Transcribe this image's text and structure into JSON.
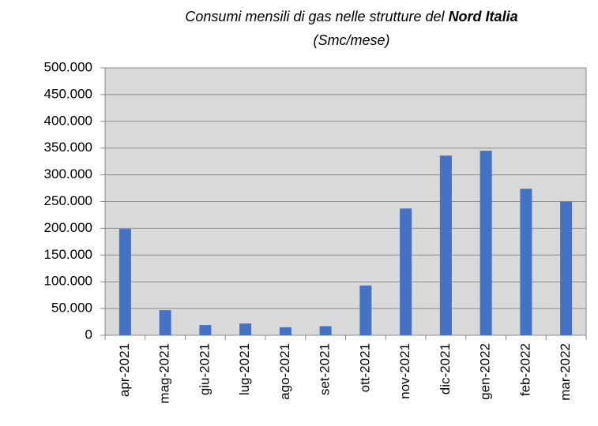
{
  "chart_data": {
    "type": "bar",
    "title": "Consumi mensili di gas nelle strutture del",
    "title_bold": "Nord Italia",
    "subtitle": "(Smc/mese)",
    "categories": [
      "apr-2021",
      "mag-2021",
      "giu-2021",
      "lug-2021",
      "ago-2021",
      "set-2021",
      "ott-2021",
      "nov-2021",
      "dic-2021",
      "gen-2022",
      "feb-2022",
      "mar-2022"
    ],
    "values": [
      199000,
      47000,
      19000,
      22000,
      15000,
      17000,
      93000,
      237000,
      336000,
      345000,
      274000,
      250000
    ],
    "color": "#4472c4",
    "ylim": [
      0,
      500000
    ],
    "yticks": [
      0,
      {
        "value": 50000,
        "label": "50.000"
      },
      {
        "value": 100000,
        "label": "100.000"
      },
      {
        "value": 150000,
        "label": "150.000"
      },
      {
        "value": 200000,
        "label": "200.000"
      },
      {
        "value": 250000,
        "label": "250.000"
      },
      {
        "value": 300000,
        "label": "300.000"
      },
      {
        "value": 350000,
        "label": "350.000"
      },
      {
        "value": 400000,
        "label": "400.000"
      },
      {
        "value": 450000,
        "label": "450.000"
      },
      {
        "value": 500000,
        "label": "500.000"
      }
    ],
    "grid": true
  }
}
